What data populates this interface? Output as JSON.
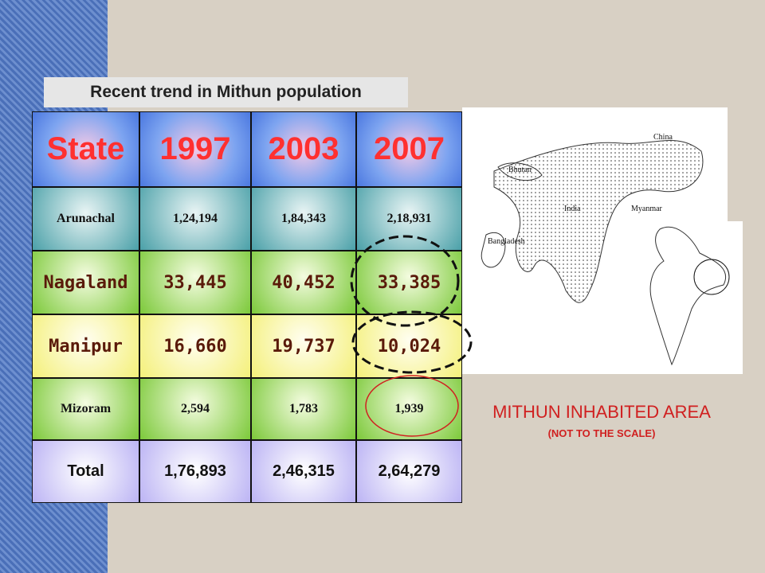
{
  "title": "Recent trend in Mithun population",
  "table": {
    "header": [
      "State",
      "1997",
      "2003",
      "2007"
    ],
    "rows": [
      [
        "Arunachal",
        "1,24,194",
        "1,84,343",
        "2,18,931"
      ],
      [
        "Nagaland",
        "33,445",
        "40,452",
        "33,385"
      ],
      [
        "Manipur",
        "16,660",
        "19,737",
        "10,024"
      ],
      [
        "Mizoram",
        "2,594",
        "1,783",
        "1,939"
      ],
      [
        "Total",
        "1,76,893",
        "2,46,315",
        "2,64,279"
      ]
    ]
  },
  "map": {
    "labels": [
      "China",
      "Bhutan",
      "India",
      "Myanmar",
      "Bangladesh"
    ],
    "caption": "MITHUN INHABITED AREA",
    "note": "(NOT TO THE SCALE)"
  }
}
